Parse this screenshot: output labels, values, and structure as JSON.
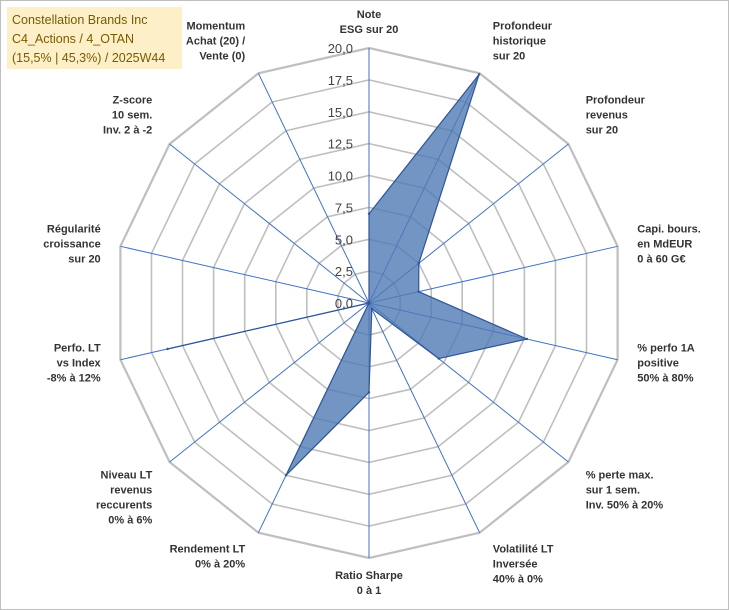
{
  "chart_data": {
    "type": "radar",
    "title_lines": [
      "Constellation Brands Inc",
      "C4_Actions / 4_OTAN",
      "(15,5% | 45,3%) / 2025W44"
    ],
    "r_min": 0,
    "r_max": 20,
    "ticks": [
      "0,0",
      "2,5",
      "5,0",
      "7,5",
      "10,0",
      "12,5",
      "15,0",
      "17,5",
      "20,0"
    ],
    "axes": [
      {
        "label": [
          "Note",
          "ESG sur 20"
        ],
        "value": 7.0
      },
      {
        "label": [
          "Profondeur",
          "historique",
          "sur 20"
        ],
        "value": 19.9
      },
      {
        "label": [
          "Profondeur",
          "revenus",
          "sur 20"
        ],
        "value": 5.0
      },
      {
        "label": [
          "Capi. bours.",
          "en MdEUR",
          "0 à 60 G€"
        ],
        "value": 4.0
      },
      {
        "label": [
          "% perfo 1A",
          "positive",
          "50% à 80%"
        ],
        "value": 12.7
      },
      {
        "label": [
          "% perte max.",
          "sur 1 sem.",
          "Inv. 50% à 20%"
        ],
        "value": 7.0
      },
      {
        "label": [
          "Volatilité LT",
          "Inversée",
          "40% à 0%"
        ],
        "value": 0.5
      },
      {
        "label": [
          "Ratio Sharpe",
          "0 à 1"
        ],
        "value": 7.0
      },
      {
        "label": [
          "Rendement LT",
          "0% à 20%"
        ],
        "value": 15.0
      },
      {
        "label": [
          "Niveau LT",
          "revenus",
          "reccurents",
          "0% à 6%"
        ],
        "value": 0.0
      },
      {
        "label": [
          "Perfo. LT",
          "vs Index",
          "-8% à 12%"
        ],
        "value": 16.2
      },
      {
        "label": [
          "Régularité",
          "croissance",
          "sur 20"
        ],
        "value": 0.0
      },
      {
        "label": [
          "Z-score",
          "10 sem.",
          "Inv. 2 à -2"
        ],
        "value": 0.0
      },
      {
        "label": [
          "Momentum",
          "Achat (20) /",
          "Vente (0)"
        ],
        "value": 0.0
      }
    ],
    "colors": {
      "fill": "#4f7ab5",
      "fill_opacity": "0.8",
      "stroke": "#2f5597",
      "grid": "#bfbfbf",
      "spoke": "#4472c4"
    }
  }
}
